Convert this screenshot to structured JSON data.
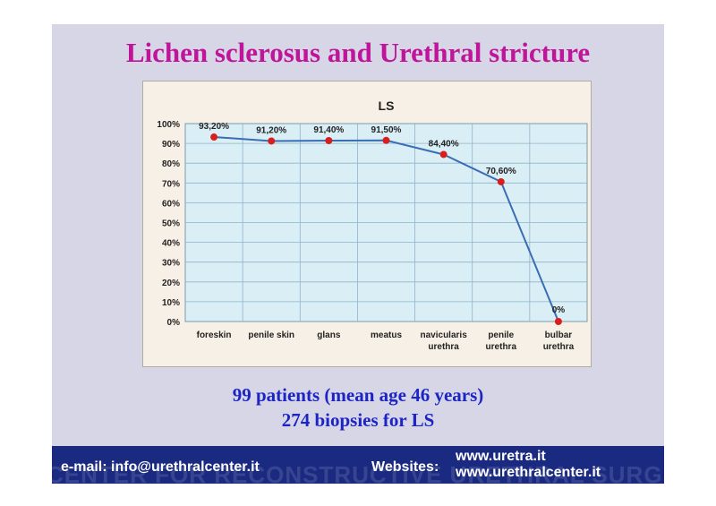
{
  "slide": {
    "title": "Lichen sclerosus and Urethral  stricture",
    "caption_line_1": "99 patients (mean age 46 years)",
    "caption_line_2": "274 biopsies for LS"
  },
  "footer": {
    "email": "e-mail: info@urethralcenter.it",
    "websites_label": "Websites:",
    "sites": [
      "www.uretra.it",
      "www.urethralcenter.it"
    ],
    "watermark": "CENTER FOR RECONSTRUCTIVE URETHRAL SURGERY"
  },
  "chart_data": {
    "type": "line",
    "title": "LS",
    "categories": [
      [
        "foreskin"
      ],
      [
        "penile skin"
      ],
      [
        "glans"
      ],
      [
        "meatus"
      ],
      [
        "navicularis",
        "urethra"
      ],
      [
        "penile",
        "urethra"
      ],
      [
        "bulbar",
        "urethra"
      ]
    ],
    "values": [
      93.2,
      91.2,
      91.4,
      91.5,
      84.4,
      70.6,
      0
    ],
    "data_labels": [
      "93,20%",
      "91,20%",
      "91,40%",
      "91,50%",
      "84,40%",
      "70,60%",
      "0%"
    ],
    "y_ticks": [
      "0%",
      "10%",
      "20%",
      "30%",
      "40%",
      "50%",
      "60%",
      "70%",
      "80%",
      "90%",
      "100%"
    ],
    "ylim": [
      0,
      100
    ],
    "grid": true,
    "colors": {
      "line": "#3a6db5",
      "marker": "#d91e1e",
      "plot_bg": "#daeef6",
      "grid": "#8fb4c8"
    }
  }
}
